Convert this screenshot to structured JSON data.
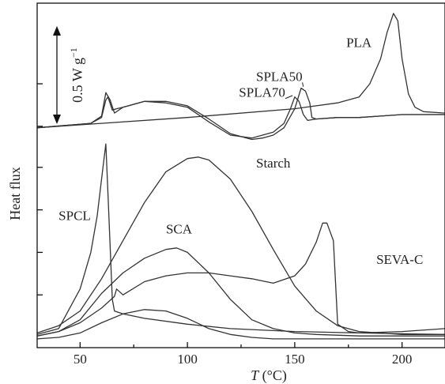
{
  "chart_data": {
    "type": "line",
    "title": "",
    "xlabel_italic": "T",
    "xlabel_unit": " (°C)",
    "ylabel": "Heat flux",
    "xlim": [
      30,
      220
    ],
    "xticks": [
      50,
      100,
      150,
      200
    ],
    "scale_bar": {
      "label": "0.5 W g",
      "exponent": "−1"
    },
    "grid": false,
    "series": [
      {
        "name": "PLA",
        "x": [
          30,
          60,
          100,
          150,
          170,
          180,
          185,
          190,
          193,
          196,
          198,
          200,
          203,
          206,
          210,
          220
        ],
        "y": [
          0.15,
          0.18,
          0.22,
          0.28,
          0.32,
          0.36,
          0.45,
          0.62,
          0.8,
          0.93,
          0.88,
          0.62,
          0.38,
          0.29,
          0.26,
          0.25
        ]
      },
      {
        "name": "SPLA50",
        "x": [
          30,
          55,
          60,
          62,
          64,
          66,
          70,
          80,
          90,
          100,
          110,
          120,
          130,
          135,
          140,
          145,
          150,
          153,
          155,
          157,
          158,
          160,
          170,
          180,
          190,
          200,
          210,
          220
        ],
        "y": [
          0.15,
          0.18,
          0.23,
          0.39,
          0.34,
          0.25,
          0.29,
          0.33,
          0.33,
          0.3,
          0.21,
          0.11,
          0.07,
          0.08,
          0.1,
          0.15,
          0.28,
          0.42,
          0.4,
          0.32,
          0.22,
          0.21,
          0.22,
          0.22,
          0.23,
          0.24,
          0.24,
          0.24
        ]
      },
      {
        "name": "SPLA70",
        "x": [
          30,
          55,
          60,
          62,
          63,
          65,
          67,
          70,
          80,
          90,
          100,
          110,
          120,
          130,
          135,
          140,
          145,
          148,
          150,
          152,
          154,
          156,
          160,
          170,
          180,
          190,
          200,
          210,
          220
        ],
        "y": [
          0.15,
          0.18,
          0.22,
          0.34,
          0.36,
          0.27,
          0.28,
          0.29,
          0.33,
          0.32,
          0.29,
          0.19,
          0.1,
          0.08,
          0.1,
          0.12,
          0.18,
          0.28,
          0.36,
          0.33,
          0.24,
          0.2,
          0.21,
          0.22,
          0.22,
          0.23,
          0.24,
          0.24,
          0.24
        ]
      },
      {
        "name": "SPCL",
        "x": [
          30,
          40,
          50,
          55,
          58,
          60,
          61,
          62,
          63,
          65,
          66,
          70,
          80,
          100,
          120,
          150,
          180,
          220
        ],
        "y": [
          -1.26,
          -1.22,
          -0.95,
          -0.7,
          -0.45,
          -0.2,
          -0.08,
          0.04,
          -0.3,
          -1.02,
          -1.1,
          -1.12,
          -1.15,
          -1.19,
          -1.22,
          -1.24,
          -1.25,
          -1.26
        ]
      },
      {
        "name": "Starch",
        "x": [
          30,
          40,
          50,
          60,
          70,
          80,
          90,
          100,
          105,
          110,
          120,
          130,
          140,
          150,
          160,
          170,
          180,
          200,
          220
        ],
        "y": [
          -1.25,
          -1.2,
          -1.1,
          -0.88,
          -0.62,
          -0.36,
          -0.15,
          -0.06,
          -0.05,
          -0.07,
          -0.2,
          -0.42,
          -0.68,
          -0.93,
          -1.1,
          -1.2,
          -1.24,
          -1.26,
          -1.26
        ]
      },
      {
        "name": "SCA",
        "x": [
          30,
          40,
          50,
          60,
          70,
          80,
          90,
          95,
          100,
          110,
          120,
          130,
          140,
          150,
          160,
          180,
          220
        ],
        "y": [
          -1.27,
          -1.24,
          -1.16,
          -0.98,
          -0.84,
          -0.74,
          -0.68,
          -0.67,
          -0.7,
          -0.84,
          -1.02,
          -1.16,
          -1.22,
          -1.25,
          -1.26,
          -1.27,
          -1.27
        ]
      },
      {
        "name": "SEVA-C",
        "x": [
          30,
          40,
          50,
          60,
          66,
          67,
          70,
          80,
          90,
          100,
          110,
          120,
          130,
          140,
          150,
          155,
          160,
          163,
          165,
          168,
          170,
          175,
          180,
          200,
          220
        ],
        "y": [
          -1.27,
          -1.24,
          -1.18,
          -1.08,
          -1.0,
          -0.95,
          -0.99,
          -0.9,
          -0.86,
          -0.84,
          -0.84,
          -0.86,
          -0.88,
          -0.91,
          -0.86,
          -0.78,
          -0.63,
          -0.5,
          -0.5,
          -0.62,
          -1.19,
          -1.24,
          -1.25,
          -1.24,
          -1.22
        ]
      },
      {
        "name": "",
        "x": [
          30,
          40,
          50,
          60,
          70,
          80,
          90,
          100,
          110,
          120,
          130,
          140,
          160,
          200,
          220
        ],
        "y": [
          -1.29,
          -1.28,
          -1.25,
          -1.18,
          -1.12,
          -1.09,
          -1.1,
          -1.15,
          -1.22,
          -1.26,
          -1.28,
          -1.29,
          -1.29,
          -1.29,
          -1.29
        ]
      }
    ],
    "annotations": [
      {
        "text": "PLA",
        "x": 174,
        "y": 0.7
      },
      {
        "text": "SPLA50",
        "x": 132,
        "y": 0.47,
        "leader_to": [
          154,
          0.43
        ]
      },
      {
        "text": "SPLA70",
        "x": 124,
        "y": 0.36,
        "leader_to": [
          149,
          0.37
        ]
      },
      {
        "text": "Starch",
        "x": 132,
        "y": -0.12
      },
      {
        "text": "SPCL",
        "x": 40,
        "y": -0.48
      },
      {
        "text": "SCA",
        "x": 90,
        "y": -0.57
      },
      {
        "text": "SEVA-C",
        "x": 188,
        "y": -0.78
      }
    ]
  }
}
